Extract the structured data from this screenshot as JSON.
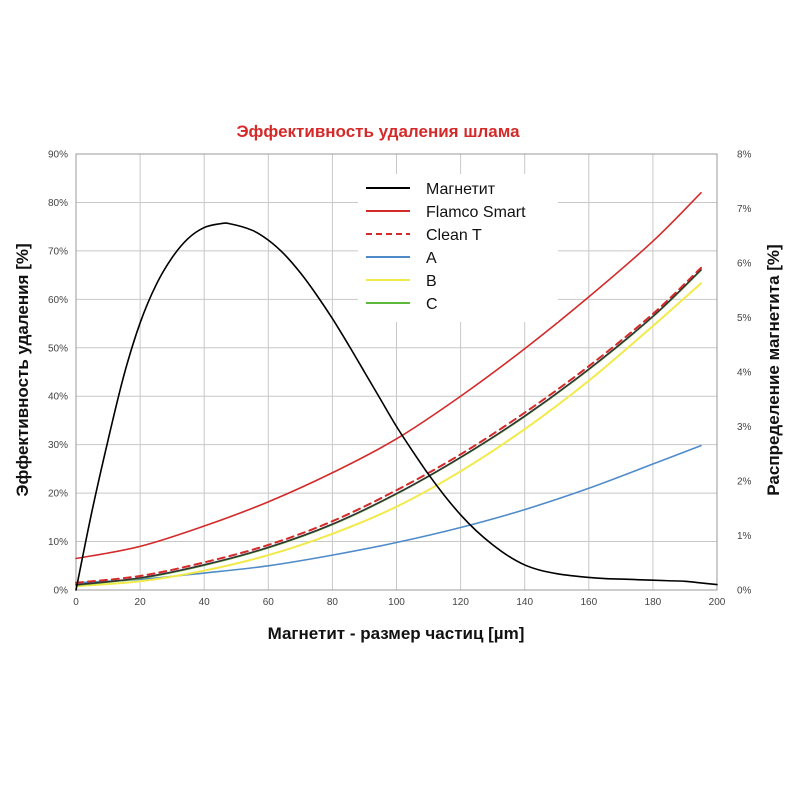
{
  "chart_data": {
    "type": "line",
    "title": "Эффективность удаления шлама",
    "title_color": "#d42a2a",
    "xlabel": "Магнетит - размер частиц [µm]",
    "ylabel": "Эффективность удаления [%]",
    "y2label": "Распределение магнетита [%]",
    "xlim": [
      0,
      200
    ],
    "ylim": [
      0,
      90
    ],
    "y2lim": [
      0,
      8
    ],
    "x_ticks": [
      "0",
      "20",
      "40",
      "60",
      "80",
      "100",
      "120",
      "140",
      "160",
      "180",
      "200"
    ],
    "y_ticks": [
      "0%",
      "10%",
      "20%",
      "30%",
      "40%",
      "50%",
      "60%",
      "70%",
      "80%",
      "90%"
    ],
    "y2_ticks": [
      "0%",
      "1%",
      "2%",
      "3%",
      "4%",
      "5%",
      "6%",
      "7%",
      "8%"
    ],
    "grid": true,
    "legend_position": "top-center",
    "series": [
      {
        "name": "Магнетит",
        "color": "#000000",
        "dash": false,
        "axis": "right",
        "x": [
          0,
          5,
          10,
          15,
          20,
          25,
          30,
          35,
          40,
          45,
          48,
          55,
          60,
          65,
          70,
          75,
          80,
          85,
          90,
          95,
          100,
          105,
          110,
          115,
          120,
          125,
          130,
          135,
          140,
          145,
          150,
          155,
          160,
          165,
          170,
          175,
          180,
          185,
          190,
          195,
          200
        ],
        "values": [
          0.0,
          1.45,
          2.75,
          3.95,
          4.9,
          5.6,
          6.1,
          6.45,
          6.65,
          6.72,
          6.72,
          6.6,
          6.42,
          6.16,
          5.82,
          5.42,
          4.98,
          4.5,
          4.0,
          3.5,
          3.0,
          2.55,
          2.12,
          1.73,
          1.38,
          1.08,
          0.83,
          0.62,
          0.46,
          0.36,
          0.3,
          0.26,
          0.23,
          0.21,
          0.2,
          0.19,
          0.18,
          0.17,
          0.16,
          0.13,
          0.1
        ]
      },
      {
        "name": "Flamco Smart",
        "color": "#d42a2a",
        "dash": false,
        "axis": "left",
        "x": [
          0,
          20,
          40,
          60,
          80,
          100,
          120,
          140,
          160,
          180,
          195
        ],
        "values": [
          6.5,
          9.0,
          13.2,
          18.2,
          24.2,
          31.2,
          40.0,
          49.8,
          60.5,
          72.0,
          82.0
        ]
      },
      {
        "name": "Clean T",
        "color": "#d42a2a",
        "dash": true,
        "axis": "left",
        "x": [
          0,
          20,
          40,
          60,
          80,
          100,
          120,
          140,
          160,
          180,
          195
        ],
        "values": [
          1.5,
          2.9,
          5.7,
          9.3,
          14.2,
          20.6,
          28.0,
          36.6,
          46.2,
          57.0,
          66.5
        ]
      },
      {
        "name": "A",
        "color": "#4f8bc9",
        "dash": false,
        "axis": "left",
        "x": [
          0,
          20,
          40,
          60,
          80,
          100,
          120,
          140,
          160,
          180,
          195
        ],
        "values": [
          1.5,
          2.2,
          3.5,
          5.0,
          7.2,
          9.8,
          12.9,
          16.6,
          21.0,
          26.0,
          29.8
        ]
      },
      {
        "name": "B",
        "color": "#f2ea4a",
        "dash": false,
        "axis": "left",
        "x": [
          0,
          20,
          40,
          60,
          80,
          100,
          120,
          140,
          160,
          180,
          195
        ],
        "values": [
          0.8,
          1.8,
          4.0,
          7.2,
          11.6,
          17.2,
          24.5,
          33.2,
          43.2,
          54.5,
          63.3
        ]
      },
      {
        "name": "C",
        "color": "#5cb83a",
        "dash": false,
        "axis": "left",
        "x": [
          0,
          20,
          40,
          60,
          80,
          100,
          120,
          140,
          160,
          180,
          195
        ],
        "values": [
          1.0,
          2.4,
          5.1,
          8.7,
          13.5,
          19.8,
          27.3,
          35.8,
          45.5,
          56.4,
          66.0
        ]
      },
      {
        "name": "",
        "color": "#333333",
        "dash": false,
        "axis": "left",
        "x": [
          0,
          20,
          40,
          60,
          80,
          100,
          120,
          140,
          160,
          180,
          195
        ],
        "values": [
          1.1,
          2.5,
          5.2,
          8.8,
          13.6,
          19.9,
          27.4,
          35.9,
          45.6,
          56.5,
          66.1
        ]
      }
    ]
  }
}
